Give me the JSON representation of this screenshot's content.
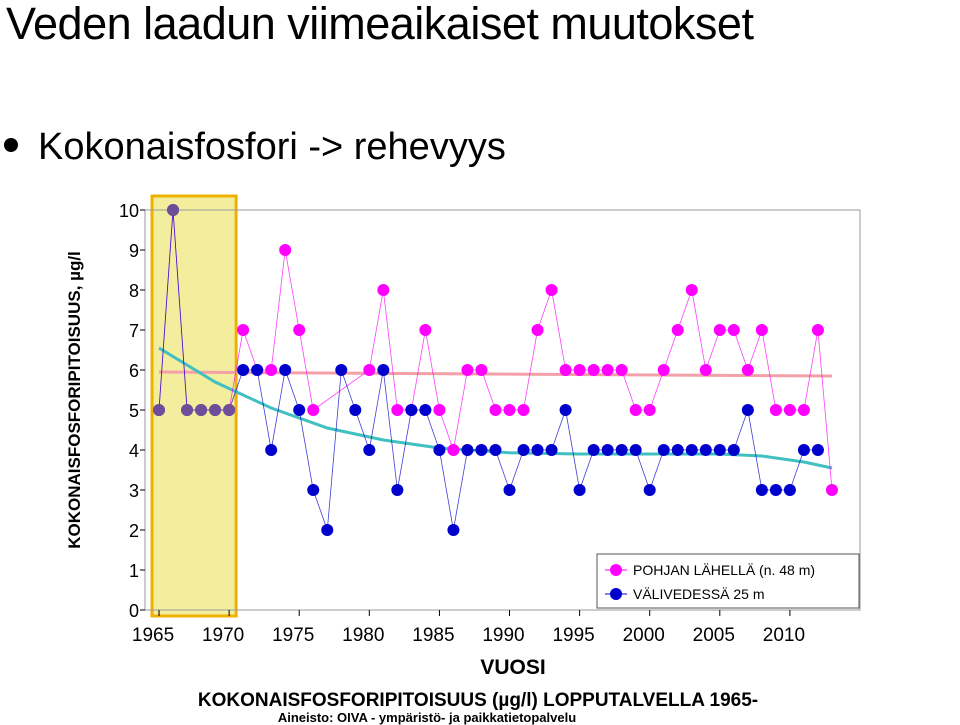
{
  "slide": {
    "title": "Veden laadun viimeaikaiset muutokset",
    "bullet": "Kokonaisfosfori -> rehevyys"
  },
  "chart_data": {
    "type": "line",
    "title": "KOKONAISFOSFORIPITOISUUS (µg/l) LOPPUTALVELLA 1965-",
    "source": "Aineisto: OIVA - ympäristö- ja paikkatietopalvelu",
    "xlabel": "VUOSI",
    "ylabel": "KOKONAISFOSFORIPITOISUUS, µg/l",
    "xlim": [
      1964,
      2012
    ],
    "ylim": [
      0,
      10
    ],
    "x_ticks": [
      1965,
      1970,
      1975,
      1980,
      1985,
      1990,
      1995,
      2000,
      2005,
      2010
    ],
    "y_ticks": [
      0,
      1,
      2,
      3,
      4,
      5,
      6,
      7,
      8,
      9,
      10
    ],
    "legend_position": "bottom-right",
    "highlight_range": [
      1964.5,
      1970.5
    ],
    "series": [
      {
        "name": "POHJAN LÄHELLÄ (n. 48 m)",
        "color": "#ff00ff",
        "points": [
          [
            1965,
            5
          ],
          [
            1966,
            10
          ],
          [
            1967,
            5
          ],
          [
            1968,
            5
          ],
          [
            1969,
            5
          ],
          [
            1970,
            5
          ],
          [
            1971,
            7
          ],
          [
            1972,
            6
          ],
          [
            1973,
            6
          ],
          [
            1974,
            9
          ],
          [
            1975,
            7
          ],
          [
            1976,
            5
          ],
          [
            1980,
            6
          ],
          [
            1981,
            8
          ],
          [
            1982,
            5
          ],
          [
            1983,
            5
          ],
          [
            1984,
            7
          ],
          [
            1985,
            5
          ],
          [
            1986,
            4
          ],
          [
            1987,
            6
          ],
          [
            1988,
            6
          ],
          [
            1989,
            5
          ],
          [
            1990,
            5
          ],
          [
            1991,
            5
          ],
          [
            1992,
            7
          ],
          [
            1993,
            8
          ],
          [
            1994,
            6
          ],
          [
            1995,
            6
          ],
          [
            1996,
            6
          ],
          [
            1997,
            6
          ],
          [
            1998,
            6
          ],
          [
            1999,
            5
          ],
          [
            2000,
            5
          ],
          [
            2001,
            6
          ],
          [
            2002,
            7
          ],
          [
            2003,
            8
          ],
          [
            2004,
            6
          ],
          [
            2005,
            7
          ],
          [
            2006,
            7
          ],
          [
            2007,
            6
          ],
          [
            2008,
            7
          ],
          [
            2009,
            5
          ],
          [
            2010,
            5
          ],
          [
            2011,
            5
          ],
          [
            2012,
            7
          ],
          [
            2013,
            3
          ]
        ]
      },
      {
        "name": "VÄLIVEDESSÄ 25 m",
        "color": "#0000cc",
        "points": [
          [
            1965,
            5
          ],
          [
            1966,
            10
          ],
          [
            1967,
            5
          ],
          [
            1968,
            5
          ],
          [
            1969,
            5
          ],
          [
            1970,
            5
          ],
          [
            1971,
            6
          ],
          [
            1972,
            6
          ],
          [
            1973,
            4
          ],
          [
            1974,
            6
          ],
          [
            1975,
            5
          ],
          [
            1976,
            3
          ],
          [
            1977,
            2
          ],
          [
            1978,
            6
          ],
          [
            1979,
            5
          ],
          [
            1980,
            4
          ],
          [
            1981,
            6
          ],
          [
            1982,
            3
          ],
          [
            1983,
            5
          ],
          [
            1984,
            5
          ],
          [
            1985,
            4
          ],
          [
            1986,
            2
          ],
          [
            1987,
            4
          ],
          [
            1988,
            4
          ],
          [
            1989,
            4
          ],
          [
            1990,
            3
          ],
          [
            1991,
            4
          ],
          [
            1992,
            4
          ],
          [
            1993,
            4
          ],
          [
            1994,
            5
          ],
          [
            1995,
            3
          ],
          [
            1996,
            4
          ],
          [
            1997,
            4
          ],
          [
            1998,
            4
          ],
          [
            1999,
            4
          ],
          [
            2000,
            3
          ],
          [
            2001,
            4
          ],
          [
            2002,
            4
          ],
          [
            2003,
            4
          ],
          [
            2004,
            4
          ],
          [
            2005,
            4
          ],
          [
            2006,
            4
          ],
          [
            2007,
            5
          ],
          [
            2008,
            3
          ],
          [
            2009,
            3
          ],
          [
            2010,
            3
          ],
          [
            2011,
            4
          ],
          [
            2012,
            4
          ]
        ]
      }
    ],
    "trendlines": [
      {
        "color": "#f4a0a8",
        "points": [
          [
            1965,
            5.95
          ],
          [
            2013,
            5.85
          ]
        ]
      },
      {
        "color": "#40c0c0",
        "points": [
          [
            1965,
            6.55
          ],
          [
            1969,
            5.7
          ],
          [
            1973,
            5.05
          ],
          [
            1977,
            4.55
          ],
          [
            1981,
            4.25
          ],
          [
            1985,
            4.05
          ],
          [
            1990,
            3.93
          ],
          [
            1995,
            3.9
          ],
          [
            2000,
            3.9
          ],
          [
            2005,
            3.9
          ],
          [
            2008,
            3.85
          ],
          [
            2011,
            3.7
          ],
          [
            2013,
            3.55
          ]
        ]
      }
    ],
    "colors": {
      "highlight_fill": "#f2ee9e",
      "highlight_border": "#f0b000",
      "pre_series_point": "#6e4d9a",
      "axis_box": "#999999"
    }
  }
}
